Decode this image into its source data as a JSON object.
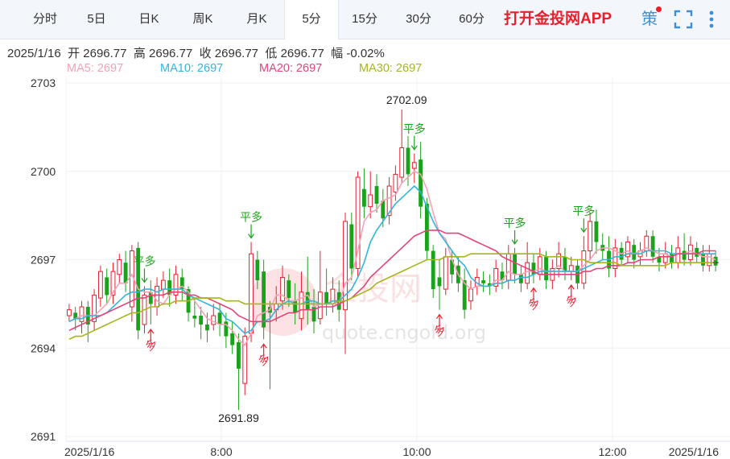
{
  "tabs": [
    {
      "label": "分时",
      "active": false
    },
    {
      "label": "5日",
      "active": false
    },
    {
      "label": "日K",
      "active": false
    },
    {
      "label": "周K",
      "active": false
    },
    {
      "label": "月K",
      "active": false
    },
    {
      "label": "5分",
      "active": true
    },
    {
      "label": "15分",
      "active": false
    },
    {
      "label": "30分",
      "active": false
    },
    {
      "label": "60分",
      "active": false
    }
  ],
  "promo": "打开金投网APP",
  "toolbar": {
    "strategy_icon": "策",
    "icons": [
      "strategy-icon",
      "fullscreen-icon",
      "more-vertical-icon"
    ]
  },
  "ohlc": {
    "date": "2025/1/16",
    "open_label": "开",
    "open": "2696.77",
    "high_label": "高",
    "high": "2696.77",
    "close_label": "收",
    "close": "2696.77",
    "low_label": "低",
    "low": "2696.77",
    "change_label": "幅",
    "change": "-0.02%"
  },
  "ma_legend": [
    {
      "label": "MA5: 2697",
      "color": "#f4a2b6"
    },
    {
      "label": "MA10: 2697",
      "color": "#33b5d9"
    },
    {
      "label": "MA20: 2697",
      "color": "#e0457a"
    },
    {
      "label": "MA30: 2697",
      "color": "#a6b51f"
    }
  ],
  "watermark": {
    "cn": "金投网",
    "url": "quote.cngold.org"
  },
  "colors": {
    "up": "#e8202b",
    "down": "#1aa31a",
    "grid": "#eef1f5"
  },
  "chart_data": {
    "type": "candlestick",
    "ylim": [
      2691,
      2703
    ],
    "yticks": [
      2703,
      2700,
      2697,
      2694,
      2691
    ],
    "x_tick_labels": [
      "2025/1/16",
      "8:00",
      "10:00",
      "12:00",
      "2025/1/16"
    ],
    "annotations": {
      "max": "2702.09",
      "min": "2691.89",
      "ping_duo": "平多",
      "duo": "多"
    },
    "candles": [
      [
        2695.1,
        2695.3,
        2694.9,
        2695.5
      ],
      [
        2695.2,
        2695.0,
        2694.6,
        2695.4
      ],
      [
        2694.9,
        2695.4,
        2694.5,
        2695.6
      ],
      [
        2695.4,
        2694.8,
        2694.2,
        2695.6
      ],
      [
        2694.9,
        2695.8,
        2694.6,
        2696.0
      ],
      [
        2695.7,
        2696.6,
        2695.4,
        2696.8
      ],
      [
        2696.4,
        2695.8,
        2695.5,
        2696.7
      ],
      [
        2695.8,
        2696.6,
        2695.5,
        2696.9
      ],
      [
        2696.5,
        2697.0,
        2696.2,
        2697.2
      ],
      [
        2696.9,
        2696.2,
        2695.9,
        2697.3
      ],
      [
        2695.4,
        2697.3,
        2694.9,
        2697.5
      ],
      [
        2697.4,
        2694.6,
        2694.3,
        2697.6
      ],
      [
        2694.8,
        2695.8,
        2694.5,
        2696.1
      ],
      [
        2695.9,
        2695.5,
        2694.8,
        2696.3
      ],
      [
        2695.4,
        2696.1,
        2695.1,
        2696.4
      ],
      [
        2696.0,
        2696.3,
        2695.7,
        2696.6
      ],
      [
        2696.3,
        2695.8,
        2695.4,
        2696.7
      ],
      [
        2695.8,
        2696.5,
        2695.5,
        2696.8
      ],
      [
        2696.4,
        2696.0,
        2695.6,
        2696.7
      ],
      [
        2696.0,
        2695.2,
        2694.9,
        2696.1
      ],
      [
        2695.1,
        2695.0,
        2694.7,
        2695.7
      ],
      [
        2695.1,
        2694.8,
        2694.3,
        2695.4
      ],
      [
        2694.8,
        2694.6,
        2694.2,
        2695.2
      ],
      [
        2694.8,
        2695.1,
        2694.6,
        2695.5
      ],
      [
        2695.2,
        2694.8,
        2694.4,
        2695.5
      ],
      [
        2694.9,
        2694.4,
        2694.0,
        2695.2
      ],
      [
        2694.5,
        2694.1,
        2693.8,
        2694.9
      ],
      [
        2694.2,
        2693.3,
        2691.9,
        2694.5
      ],
      [
        2692.8,
        2694.4,
        2692.4,
        2694.7
      ],
      [
        2694.5,
        2697.2,
        2694.2,
        2697.6
      ],
      [
        2697.0,
        2696.3,
        2696.0,
        2697.3
      ],
      [
        2696.6,
        2694.7,
        2694.3,
        2697.0
      ],
      [
        2695.4,
        2695.2,
        2692.6,
        2695.6
      ],
      [
        2695.3,
        2695.5,
        2694.9,
        2696.1
      ],
      [
        2695.6,
        2696.4,
        2695.3,
        2696.8
      ],
      [
        2696.3,
        2695.7,
        2695.4,
        2696.5
      ],
      [
        2695.6,
        2695.2,
        2694.8,
        2696.2
      ],
      [
        2695.0,
        2695.9,
        2694.6,
        2696.6
      ],
      [
        2695.9,
        2695.3,
        2694.8,
        2697.1
      ],
      [
        2695.4,
        2694.9,
        2694.5,
        2696.0
      ],
      [
        2695.0,
        2695.9,
        2694.8,
        2697.3
      ],
      [
        2695.9,
        2695.5,
        2695.1,
        2696.7
      ],
      [
        2695.5,
        2696.0,
        2695.2,
        2696.4
      ],
      [
        2695.9,
        2695.3,
        2694.9,
        2696.3
      ],
      [
        2695.3,
        2698.3,
        2693.8,
        2698.6
      ],
      [
        2698.2,
        2696.7,
        2696.3,
        2698.6
      ],
      [
        2696.7,
        2699.8,
        2696.4,
        2700.0
      ],
      [
        2699.4,
        2698.8,
        2698.4,
        2700.1
      ],
      [
        2698.8,
        2699.2,
        2698.4,
        2700.0
      ],
      [
        2699.5,
        2698.9,
        2698.6,
        2699.9
      ],
      [
        2699.0,
        2698.4,
        2698.1,
        2699.4
      ],
      [
        2698.5,
        2699.5,
        2698.2,
        2699.8
      ],
      [
        2699.3,
        2699.9,
        2699.0,
        2700.2
      ],
      [
        2699.8,
        2700.8,
        2699.6,
        2702.1
      ],
      [
        2700.8,
        2699.9,
        2699.5,
        2701.2
      ],
      [
        2700.1,
        2700.3,
        2699.6,
        2700.6
      ],
      [
        2700.4,
        2698.8,
        2698.4,
        2701.0
      ],
      [
        2698.9,
        2697.3,
        2697.0,
        2699.1
      ],
      [
        2697.3,
        2696.0,
        2695.7,
        2697.5
      ],
      [
        2696.4,
        2696.1,
        2695.3,
        2697.0
      ],
      [
        2696.0,
        2697.1,
        2695.8,
        2697.4
      ],
      [
        2697.0,
        2696.5,
        2696.2,
        2697.3
      ],
      [
        2696.8,
        2696.2,
        2695.9,
        2697.1
      ],
      [
        2696.3,
        2695.3,
        2695.0,
        2696.7
      ],
      [
        2695.6,
        2696.0,
        2695.3,
        2696.3
      ],
      [
        2696.1,
        2696.4,
        2695.8,
        2696.7
      ],
      [
        2696.3,
        2696.2,
        2695.9,
        2696.6
      ],
      [
        2696.2,
        2696.1,
        2695.8,
        2696.5
      ],
      [
        2696.1,
        2696.7,
        2695.9,
        2697.0
      ],
      [
        2696.6,
        2696.3,
        2696.0,
        2696.9
      ],
      [
        2696.3,
        2697.2,
        2696.0,
        2697.5
      ],
      [
        2697.2,
        2696.5,
        2696.2,
        2697.4
      ],
      [
        2696.5,
        2696.2,
        2695.9,
        2696.8
      ],
      [
        2696.2,
        2696.9,
        2696.0,
        2697.6
      ],
      [
        2696.9,
        2696.5,
        2696.2,
        2697.2
      ],
      [
        2696.5,
        2697.1,
        2696.3,
        2697.4
      ],
      [
        2697.1,
        2696.3,
        2696.0,
        2697.3
      ],
      [
        2696.3,
        2696.7,
        2696.0,
        2697.0
      ],
      [
        2696.7,
        2697.2,
        2696.4,
        2697.6
      ],
      [
        2697.1,
        2696.6,
        2696.3,
        2697.4
      ],
      [
        2696.6,
        2696.8,
        2696.3,
        2697.1
      ],
      [
        2696.8,
        2696.2,
        2696.0,
        2697.0
      ],
      [
        2696.2,
        2697.3,
        2696.0,
        2697.8
      ],
      [
        2697.3,
        2698.3,
        2697.0,
        2698.6
      ],
      [
        2698.3,
        2697.6,
        2697.2,
        2698.7
      ],
      [
        2697.5,
        2697.3,
        2697.0,
        2697.9
      ],
      [
        2697.3,
        2696.7,
        2696.4,
        2697.8
      ],
      [
        2696.7,
        2697.4,
        2696.4,
        2697.7
      ],
      [
        2697.4,
        2697.0,
        2696.8,
        2697.6
      ],
      [
        2697.1,
        2697.6,
        2696.9,
        2697.8
      ],
      [
        2697.5,
        2697.0,
        2696.7,
        2697.7
      ],
      [
        2697.1,
        2697.3,
        2696.8,
        2697.6
      ],
      [
        2697.3,
        2697.8,
        2697.1,
        2698.0
      ],
      [
        2697.8,
        2697.1,
        2696.9,
        2698.0
      ],
      [
        2697.1,
        2696.9,
        2696.6,
        2697.4
      ],
      [
        2696.9,
        2697.2,
        2696.7,
        2697.6
      ],
      [
        2697.2,
        2696.9,
        2696.7,
        2697.5
      ],
      [
        2696.9,
        2697.4,
        2696.7,
        2697.8
      ],
      [
        2697.3,
        2697.0,
        2696.8,
        2697.9
      ],
      [
        2697.0,
        2697.5,
        2696.8,
        2697.8
      ],
      [
        2697.4,
        2697.1,
        2696.9,
        2697.6
      ],
      [
        2697.2,
        2696.8,
        2696.6,
        2697.5
      ],
      [
        2696.8,
        2697.2,
        2696.6,
        2697.5
      ],
      [
        2697.1,
        2696.8,
        2696.6,
        2697.3
      ]
    ],
    "ma5": [
      2694.9,
      2695.0,
      2695.1,
      2695.1,
      2695.1,
      2695.3,
      2695.5,
      2695.9,
      2696.2,
      2696.2,
      2696.5,
      2696.0,
      2695.9,
      2695.9,
      2695.6,
      2695.5,
      2695.8,
      2696.0,
      2696.1,
      2695.9,
      2695.6,
      2695.3,
      2695.0,
      2694.9,
      2694.8,
      2694.8,
      2694.6,
      2694.3,
      2694.1,
      2694.5,
      2695.1,
      2695.2,
      2695.3,
      2695.8,
      2695.8,
      2695.6,
      2695.6,
      2695.7,
      2695.8,
      2695.4,
      2695.5,
      2695.5,
      2695.5,
      2695.5,
      2696.2,
      2696.4,
      2697.3,
      2698.3,
      2698.6,
      2698.7,
      2699.0,
      2699.1,
      2699.2,
      2699.6,
      2699.8,
      2700.0,
      2699.9,
      2699.4,
      2698.6,
      2697.9,
      2697.7,
      2697.0,
      2696.5,
      2696.2,
      2696.0,
      2696.1,
      2696.1,
      2696.1,
      2696.3,
      2696.3,
      2696.6,
      2696.5,
      2696.5,
      2696.6,
      2696.6,
      2696.7,
      2696.6,
      2696.6,
      2696.8,
      2696.6,
      2696.6,
      2696.6,
      2696.8,
      2697.0,
      2697.3,
      2697.4,
      2697.4,
      2697.3,
      2697.2,
      2697.3,
      2697.2,
      2697.3,
      2697.4,
      2697.3,
      2697.2,
      2697.2,
      2697.1,
      2697.2,
      2697.2,
      2697.3,
      2697.2,
      2697.1,
      2697.1,
      2697.0
    ],
    "ma10": [
      2694.9,
      2695.0,
      2695.0,
      2695.1,
      2695.1,
      2695.1,
      2695.2,
      2695.4,
      2695.6,
      2695.8,
      2695.9,
      2695.9,
      2696.0,
      2696.0,
      2695.9,
      2696.0,
      2696.0,
      2696.0,
      2696.0,
      2695.8,
      2695.7,
      2695.6,
      2695.5,
      2695.4,
      2695.3,
      2695.0,
      2694.9,
      2694.7,
      2694.5,
      2694.6,
      2694.9,
      2694.9,
      2695.0,
      2695.3,
      2695.5,
      2695.6,
      2695.5,
      2695.5,
      2695.6,
      2695.6,
      2695.5,
      2695.5,
      2695.6,
      2695.6,
      2695.8,
      2696.0,
      2696.4,
      2696.9,
      2697.6,
      2698.0,
      2698.3,
      2698.6,
      2698.9,
      2699.1,
      2699.3,
      2699.5,
      2699.3,
      2698.8,
      2698.3,
      2697.9,
      2697.6,
      2697.3,
      2697.0,
      2696.8,
      2696.4,
      2696.2,
      2696.1,
      2696.1,
      2696.2,
      2696.2,
      2696.3,
      2696.3,
      2696.4,
      2696.4,
      2696.5,
      2696.6,
      2696.6,
      2696.6,
      2696.6,
      2696.6,
      2696.6,
      2696.6,
      2696.7,
      2696.8,
      2696.9,
      2697.0,
      2697.0,
      2697.1,
      2697.1,
      2697.2,
      2697.2,
      2697.2,
      2697.3,
      2697.3,
      2697.3,
      2697.3,
      2697.2,
      2697.2,
      2697.2,
      2697.2,
      2697.2,
      2697.2,
      2697.2,
      2697.2
    ],
    "ma20": [
      2694.6,
      2694.7,
      2694.8,
      2694.9,
      2695.0,
      2695.1,
      2695.2,
      2695.3,
      2695.4,
      2695.5,
      2695.6,
      2695.7,
      2695.7,
      2695.8,
      2695.8,
      2695.8,
      2695.9,
      2695.9,
      2695.9,
      2695.8,
      2695.8,
      2695.7,
      2695.7,
      2695.6,
      2695.5,
      2695.4,
      2695.3,
      2695.1,
      2695.0,
      2694.9,
      2694.9,
      2694.9,
      2694.9,
      2695.0,
      2695.1,
      2695.2,
      2695.2,
      2695.3,
      2695.3,
      2695.3,
      2695.4,
      2695.4,
      2695.4,
      2695.5,
      2695.6,
      2695.7,
      2695.9,
      2696.1,
      2696.4,
      2696.6,
      2696.8,
      2697.0,
      2697.2,
      2697.4,
      2697.6,
      2697.8,
      2697.9,
      2698.0,
      2698.0,
      2698.0,
      2697.9,
      2697.9,
      2697.9,
      2697.8,
      2697.7,
      2697.6,
      2697.5,
      2697.4,
      2697.3,
      2697.1,
      2697.0,
      2696.9,
      2696.8,
      2696.7,
      2696.6,
      2696.5,
      2696.5,
      2696.5,
      2696.5,
      2696.5,
      2696.5,
      2696.5,
      2696.6,
      2696.6,
      2696.7,
      2696.7,
      2696.8,
      2696.8,
      2696.8,
      2696.9,
      2696.9,
      2697.0,
      2697.0,
      2697.0,
      2697.1,
      2697.1,
      2697.1,
      2697.2,
      2697.2,
      2697.2,
      2697.2,
      2697.3,
      2697.3,
      2697.3
    ],
    "ma30": [
      2694.3,
      2694.4,
      2694.4,
      2694.5,
      2694.6,
      2694.7,
      2694.8,
      2694.9,
      2695.0,
      2695.1,
      2695.2,
      2695.2,
      2695.3,
      2695.4,
      2695.4,
      2695.5,
      2695.5,
      2695.6,
      2695.6,
      2695.6,
      2695.7,
      2695.7,
      2695.7,
      2695.7,
      2695.7,
      2695.6,
      2695.6,
      2695.6,
      2695.5,
      2695.5,
      2695.5,
      2695.5,
      2695.5,
      2695.5,
      2695.5,
      2695.5,
      2695.5,
      2695.5,
      2695.5,
      2695.5,
      2695.5,
      2695.5,
      2695.5,
      2695.6,
      2695.6,
      2695.7,
      2695.8,
      2695.9,
      2696.0,
      2696.2,
      2696.3,
      2696.4,
      2696.5,
      2696.6,
      2696.7,
      2696.8,
      2696.9,
      2697.0,
      2697.0,
      2697.0,
      2697.1,
      2697.1,
      2697.1,
      2697.1,
      2697.2,
      2697.2,
      2697.2,
      2697.2,
      2697.2,
      2697.2,
      2697.2,
      2697.2,
      2697.2,
      2697.2,
      2697.2,
      2697.2,
      2697.1,
      2697.1,
      2697.1,
      2697.1,
      2697.0,
      2697.0,
      2697.0,
      2696.9,
      2696.9,
      2696.9,
      2696.9,
      2696.9,
      2696.8,
      2696.8,
      2696.8,
      2696.8,
      2696.8,
      2696.8,
      2696.8,
      2696.8,
      2696.9,
      2696.9,
      2696.9,
      2696.9,
      2696.9,
      2696.9,
      2696.9,
      2696.9
    ],
    "signals": [
      {
        "label": "平多",
        "index": 12,
        "type": "ping"
      },
      {
        "label": "多",
        "index": 13,
        "type": "duo"
      },
      {
        "label": "平多",
        "index": 29,
        "type": "ping"
      },
      {
        "label": "多",
        "index": 31,
        "type": "duo"
      },
      {
        "label": "平多",
        "index": 55,
        "type": "ping"
      },
      {
        "label": "多",
        "index": 59,
        "type": "duo"
      },
      {
        "label": "平多",
        "index": 71,
        "type": "ping"
      },
      {
        "label": "多",
        "index": 74,
        "type": "duo"
      },
      {
        "label": "平多",
        "index": 82,
        "type": "ping"
      },
      {
        "label": "多",
        "index": 80,
        "type": "duo"
      }
    ]
  }
}
